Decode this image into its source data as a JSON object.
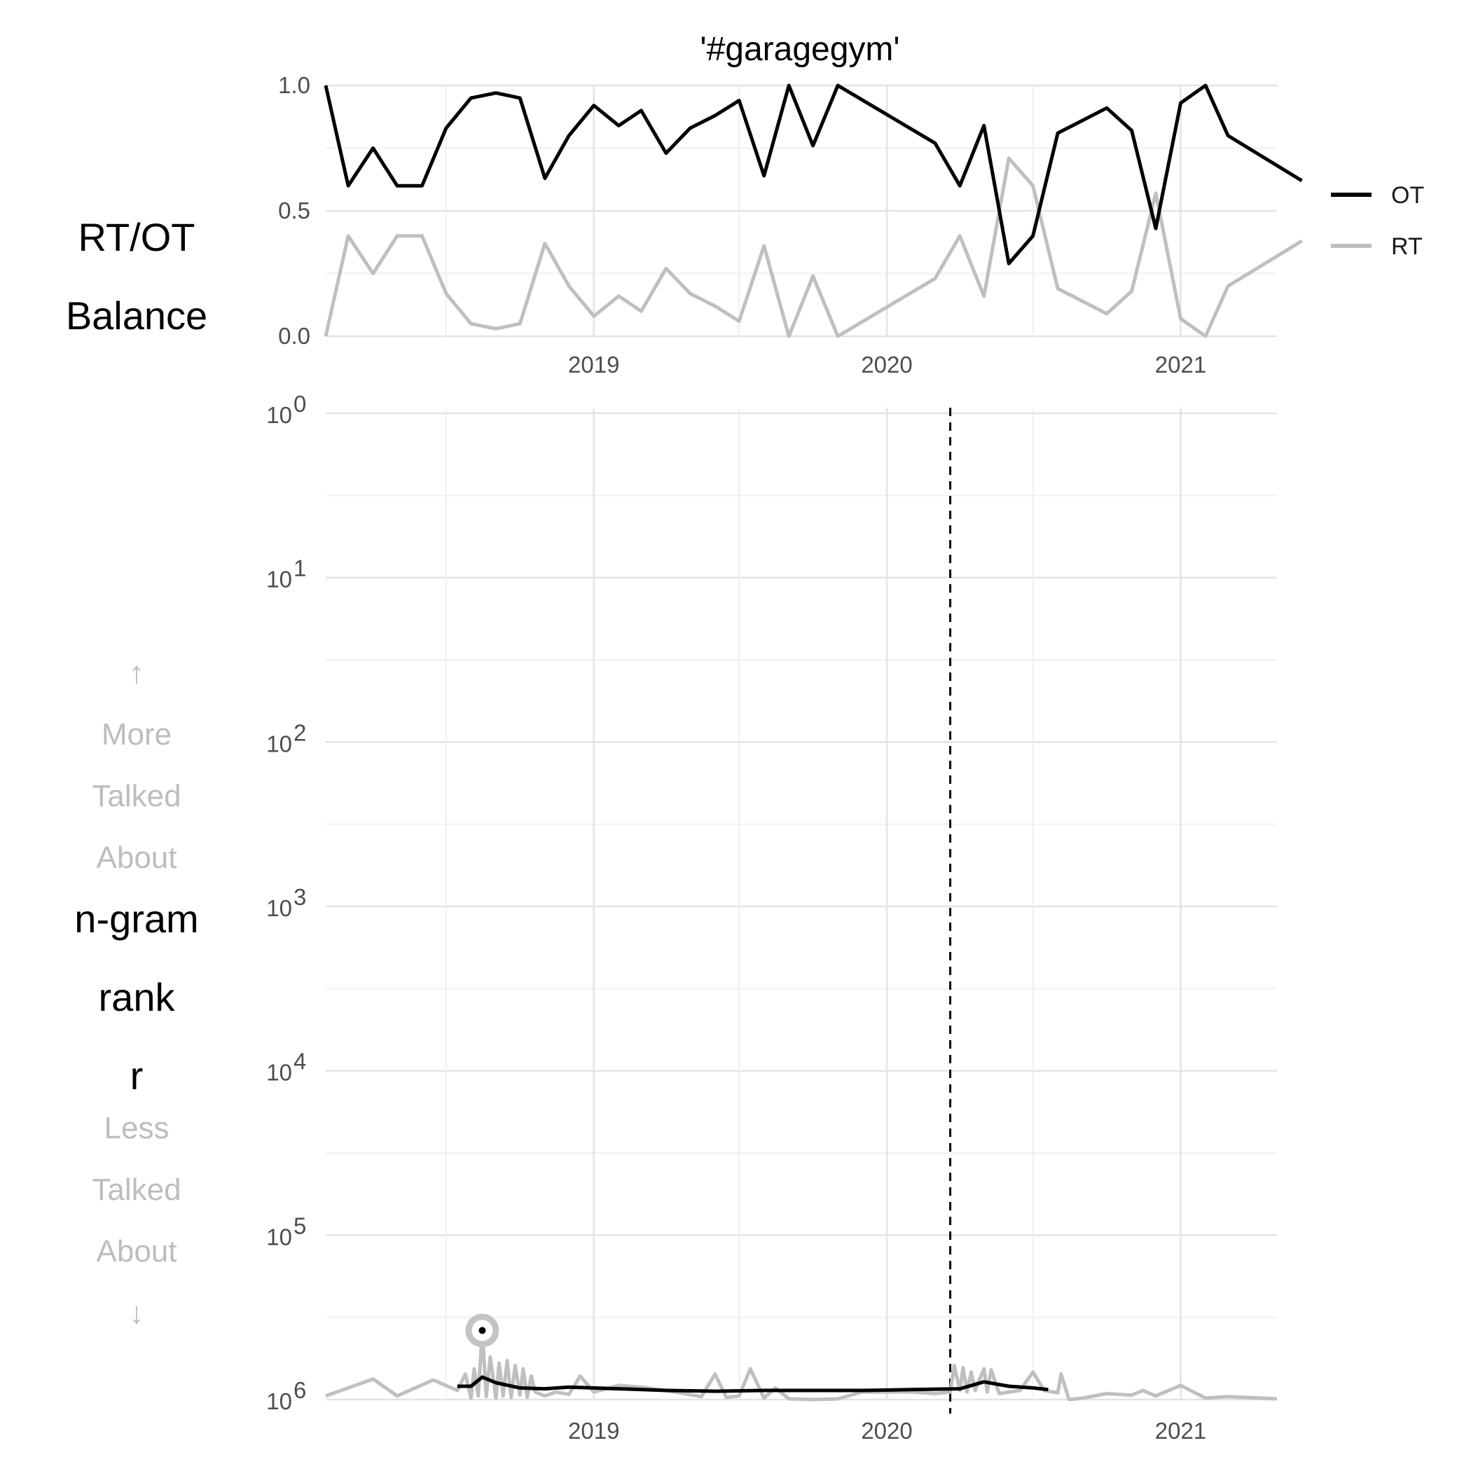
{
  "chart_data": [
    {
      "panel": "top",
      "type": "line",
      "title": "'#garagegym'",
      "ylabel_lines": [
        "RT/OT",
        "Balance"
      ],
      "xaxis_type": "date",
      "xlim": [
        "2018-02-01",
        "2021-05-01"
      ],
      "ylim": [
        0,
        1
      ],
      "y_tick_labels": [
        "0.0",
        "0.5",
        "1.0"
      ],
      "x_tick_labels": [
        "2019",
        "2020",
        "2021"
      ],
      "grid": true,
      "legend_position": "right",
      "colors": {
        "OT": "#000000",
        "RT": "#bfbfbf"
      },
      "x": [
        "2018-02-01",
        "2018-03-01",
        "2018-04-01",
        "2018-05-01",
        "2018-06-01",
        "2018-07-01",
        "2018-08-01",
        "2018-09-01",
        "2018-10-01",
        "2018-11-01",
        "2018-12-01",
        "2019-01-01",
        "2019-02-01",
        "2019-03-01",
        "2019-04-01",
        "2019-05-01",
        "2019-06-01",
        "2019-07-01",
        "2019-08-01",
        "2019-09-01",
        "2019-10-01",
        "2019-11-01",
        "2020-03-01",
        "2020-04-01",
        "2020-05-01",
        "2020-06-01",
        "2020-07-01",
        "2020-08-01",
        "2020-10-01",
        "2020-11-01",
        "2020-12-01",
        "2021-01-01",
        "2021-02-01",
        "2021-03-01",
        "2021-06-01"
      ],
      "series": [
        {
          "name": "OT",
          "values": [
            1.0,
            0.6,
            0.75,
            0.6,
            0.6,
            0.83,
            0.95,
            0.97,
            0.95,
            0.63,
            0.8,
            0.92,
            0.84,
            0.9,
            0.73,
            0.83,
            0.88,
            0.94,
            0.64,
            1.0,
            0.76,
            1.0,
            0.77,
            0.6,
            0.84,
            0.29,
            0.4,
            0.81,
            0.91,
            0.82,
            0.43,
            0.93,
            1.0,
            0.8,
            0.62
          ]
        },
        {
          "name": "RT",
          "values": [
            0.0,
            0.4,
            0.25,
            0.4,
            0.4,
            0.17,
            0.05,
            0.03,
            0.05,
            0.37,
            0.2,
            0.08,
            0.16,
            0.1,
            0.27,
            0.17,
            0.12,
            0.06,
            0.36,
            0.0,
            0.24,
            0.0,
            0.23,
            0.4,
            0.16,
            0.71,
            0.6,
            0.19,
            0.09,
            0.18,
            0.57,
            0.07,
            0.0,
            0.2,
            0.38
          ]
        }
      ]
    },
    {
      "panel": "bottom",
      "type": "line",
      "ylabel_lines": [
        "n-gram",
        "rank",
        "r"
      ],
      "up_annotation_lines": [
        "↑",
        "More",
        "Talked",
        "About"
      ],
      "down_annotation_lines": [
        "Less",
        "Talked",
        "About",
        "↓"
      ],
      "xaxis_type": "date",
      "xlim": [
        "2018-02-01",
        "2021-05-01"
      ],
      "y_scale": "log10",
      "y_reversed": true,
      "ylim": [
        1,
        1000000
      ],
      "y_tick_labels": [
        "10^0",
        "10^1",
        "10^2",
        "10^3",
        "10^4",
        "10^5",
        "10^6"
      ],
      "x_tick_labels": [
        "2019",
        "2020",
        "2021"
      ],
      "grid": true,
      "vline_date": "2020-03-20",
      "peak_marker": {
        "date": "2018-08-15",
        "rank": 380000
      },
      "colors": {
        "OT": "#000000",
        "RT": "#bfbfbf"
      },
      "series": [
        {
          "name": "RT",
          "x": [
            "2018-02-01",
            "2018-04-01",
            "2018-05-01",
            "2018-06-15",
            "2018-07-15",
            "2018-07-25",
            "2018-08-01",
            "2018-08-05",
            "2018-08-10",
            "2018-08-15",
            "2018-08-20",
            "2018-08-25",
            "2018-09-01",
            "2018-09-05",
            "2018-09-10",
            "2018-09-15",
            "2018-09-20",
            "2018-09-25",
            "2018-10-01",
            "2018-10-05",
            "2018-10-10",
            "2018-10-15",
            "2018-10-20",
            "2018-11-01",
            "2018-11-15",
            "2018-12-01",
            "2018-12-15",
            "2019-01-01",
            "2019-02-01",
            "2019-03-01",
            "2019-04-01",
            "2019-05-15",
            "2019-06-01",
            "2019-06-15",
            "2019-07-01",
            "2019-07-15",
            "2019-08-01",
            "2019-08-15",
            "2019-09-01",
            "2019-10-01",
            "2019-11-01",
            "2019-12-01",
            "2020-02-01",
            "2020-03-01",
            "2020-03-20",
            "2020-03-25",
            "2020-04-01",
            "2020-04-05",
            "2020-04-10",
            "2020-04-15",
            "2020-04-20",
            "2020-05-01",
            "2020-05-05",
            "2020-05-10",
            "2020-05-20",
            "2020-06-01",
            "2020-06-15",
            "2020-07-01",
            "2020-07-15",
            "2020-08-01",
            "2020-08-05",
            "2020-08-15",
            "2020-09-01",
            "2020-10-01",
            "2020-11-01",
            "2020-11-15",
            "2020-12-01",
            "2021-01-01",
            "2021-02-01",
            "2021-03-01",
            "2021-05-01"
          ],
          "values": [
            950000,
            750000,
            950000,
            760000,
            880000,
            700000,
            980000,
            650000,
            950000,
            380000,
            960000,
            550000,
            980000,
            600000,
            950000,
            580000,
            970000,
            620000,
            940000,
            650000,
            970000,
            720000,
            900000,
            950000,
            900000,
            930000,
            720000,
            900000,
            820000,
            840000,
            880000,
            960000,
            700000,
            970000,
            950000,
            650000,
            980000,
            850000,
            990000,
            1000000,
            990000,
            900000,
            900000,
            920000,
            900000,
            620000,
            880000,
            640000,
            900000,
            680000,
            880000,
            650000,
            900000,
            660000,
            920000,
            900000,
            880000,
            680000,
            880000,
            910000,
            700000,
            1000000,
            980000,
            920000,
            940000,
            880000,
            950000,
            820000,
            980000,
            960000,
            990000
          ]
        },
        {
          "name": "OT",
          "x": [
            "2018-07-15",
            "2018-08-01",
            "2018-08-15",
            "2018-09-01",
            "2018-10-01",
            "2018-11-01",
            "2018-12-01",
            "2019-02-01",
            "2019-04-01",
            "2019-06-01",
            "2019-08-01",
            "2019-10-01",
            "2019-12-01",
            "2020-02-01",
            "2020-04-01",
            "2020-05-01",
            "2020-06-01",
            "2020-07-01",
            "2020-07-20"
          ],
          "values": [
            830000,
            830000,
            730000,
            790000,
            850000,
            860000,
            840000,
            860000,
            880000,
            890000,
            880000,
            880000,
            880000,
            870000,
            860000,
            780000,
            830000,
            850000,
            870000
          ]
        }
      ]
    }
  ]
}
